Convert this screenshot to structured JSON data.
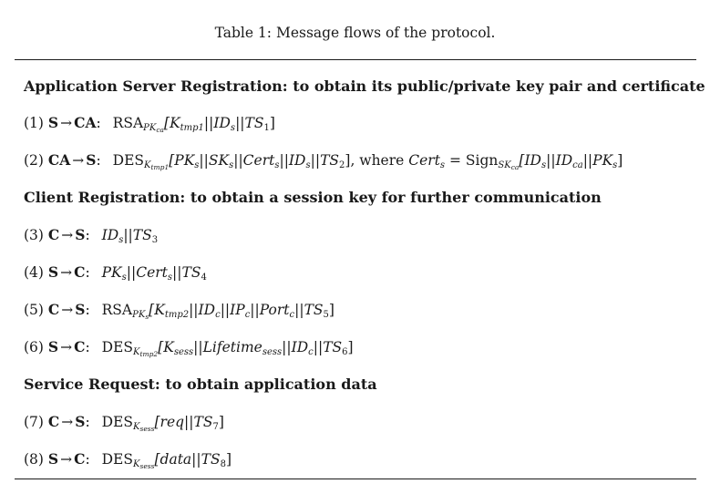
{
  "caption": "Table 1: Message flows of the protocol.",
  "sections": {
    "app_server_registration": "Application Server Registration: to obtain its public/private key pair and certificate",
    "client_registration": "Client Registration: to obtain a session key for further communication",
    "service_request": "Service Request: to obtain application data"
  },
  "flows": {
    "f1": {
      "num": "(1)",
      "from": "S",
      "to": "CA",
      "arrow": "→",
      "op": "RSA",
      "key": "PK",
      "key_sub": "ca",
      "body": "[K",
      "body_sub": "tmp1",
      "rest": "||ID",
      "rest_sub": "s",
      "tail": "||TS",
      "tail_sub": "1",
      "end": "]"
    },
    "f2": {
      "num": "(2)",
      "from": "CA",
      "to": "S",
      "arrow": "→",
      "op": "DES",
      "key": "K",
      "key_sub": "tmp1",
      "p1": "[PK",
      "p1_sub": "s",
      "p2": "||SK",
      "p2_sub": "s",
      "p3": "||Cert",
      "p3_sub": "s",
      "p4": "||ID",
      "p4_sub": "s",
      "p5": "||TS",
      "p5_sub": "2",
      "p6": "], where ",
      "cert": "Cert",
      "cert_sub": "s",
      "eq": " = Sign",
      "sign_key": "SK",
      "sign_key_sub": "ca",
      "q1": "[ID",
      "q1_sub": "s",
      "q2": "||ID",
      "q2_sub": "ca",
      "q3": "||PK",
      "q3_sub": "s",
      "q4": "]"
    },
    "f3": {
      "num": "(3)",
      "from": "C",
      "to": "S",
      "arrow": "→",
      "p1": "ID",
      "p1_sub": "s",
      "p2": "||TS",
      "p2_sub": "3"
    },
    "f4": {
      "num": "(4)",
      "from": "S",
      "to": "C",
      "arrow": "→",
      "p1": "PK",
      "p1_sub": "s",
      "p2": "||Cert",
      "p2_sub": "s",
      "p3": "||TS",
      "p3_sub": "4"
    },
    "f5": {
      "num": "(5)",
      "from": "C",
      "to": "S",
      "arrow": "→",
      "op": "RSA",
      "key": "PK",
      "key_sub": "s",
      "p1": "[K",
      "p1_sub": "tmp2",
      "p2": "||ID",
      "p2_sub": "c",
      "p3": "||IP",
      "p3_sub": "c",
      "p4": "||Port",
      "p4_sub": "c",
      "p5": "||TS",
      "p5_sub": "5",
      "end": "]"
    },
    "f6": {
      "num": "(6)",
      "from": "S",
      "to": "C",
      "arrow": "→",
      "op": "DES",
      "key": "K",
      "key_sub": "tmp2",
      "p1": "[K",
      "p1_sub": "sess",
      "p2": "||Lifetime",
      "p2_sub": "sess",
      "p3": "||ID",
      "p3_sub": "c",
      "p4": "||TS",
      "p4_sub": "6",
      "end": "]"
    },
    "f7": {
      "num": "(7)",
      "from": "C",
      "to": "S",
      "arrow": "→",
      "op": "DES",
      "key": "K",
      "key_sub": "sess",
      "p1": "[req||TS",
      "p1_sub": "7",
      "end": "]"
    },
    "f8": {
      "num": "(8)",
      "from": "S",
      "to": "C",
      "arrow": "→",
      "op": "DES",
      "key": "K",
      "key_sub": "sess",
      "p1": "[data||TS",
      "p1_sub": "8",
      "end": "]"
    }
  }
}
